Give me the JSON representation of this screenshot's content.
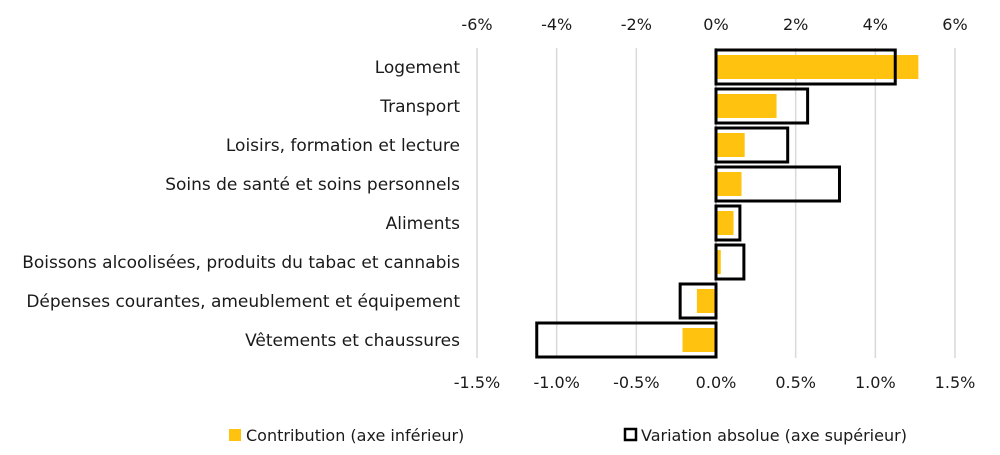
{
  "chart_data": {
    "type": "bar",
    "orientation": "horizontal",
    "categories": [
      "Logement",
      "Transport",
      "Loisirs, formation et lecture",
      "Soins de santé et soins personnels",
      "Aliments",
      "Boissons alcoolisées, produits du tabac et cannabis",
      "Dépenses courantes, ameublement et équipement",
      "Vêtements et chaussures"
    ],
    "series": [
      {
        "name": "Contribution (axe inférieur)",
        "axis": "bottom",
        "color": "#FFC20E",
        "style": "filled",
        "values": [
          1.27,
          0.38,
          0.18,
          0.16,
          0.11,
          0.03,
          -0.12,
          -0.21
        ]
      },
      {
        "name": "Variation absolue (axe supérieur)",
        "axis": "top",
        "color": "#000000",
        "style": "outline",
        "values": [
          4.5,
          2.3,
          1.8,
          3.1,
          0.6,
          0.7,
          -0.9,
          -4.5
        ]
      }
    ],
    "bottom_axis": {
      "range": [
        -1.5,
        1.5
      ],
      "ticks": [
        -1.5,
        -1.0,
        -0.5,
        0.0,
        0.5,
        1.0,
        1.5
      ],
      "tick_labels": [
        "-1.5%",
        "-1.0%",
        "-0.5%",
        "0.0%",
        "0.5%",
        "1.0%",
        "1.5%"
      ]
    },
    "top_axis": {
      "range": [
        -6,
        6
      ],
      "ticks": [
        -6,
        -4,
        -2,
        0,
        2,
        4,
        6
      ],
      "tick_labels": [
        "-6%",
        "-4%",
        "-2%",
        "0%",
        "2%",
        "4%",
        "6%"
      ]
    },
    "grid": true,
    "legend_position": "bottom"
  }
}
